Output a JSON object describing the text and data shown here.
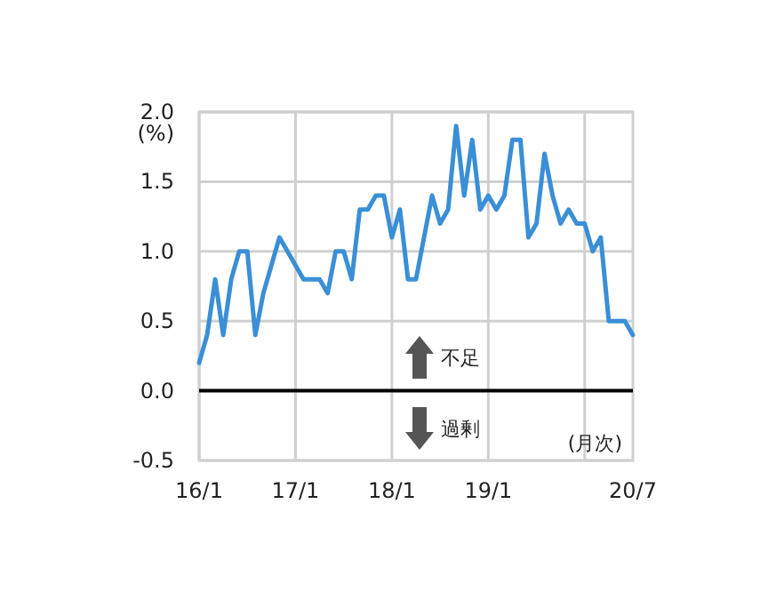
{
  "chart_data": {
    "type": "line",
    "ylabel": "(%)",
    "categories": [
      "16/1",
      null,
      null,
      null,
      null,
      null,
      null,
      null,
      null,
      null,
      null,
      null,
      "17/1",
      null,
      null,
      null,
      null,
      null,
      null,
      null,
      null,
      null,
      null,
      null,
      "18/1",
      null,
      null,
      null,
      null,
      null,
      null,
      null,
      null,
      null,
      null,
      null,
      "19/1",
      null,
      null,
      null,
      null,
      null,
      null,
      null,
      null,
      null,
      null,
      null,
      null,
      null,
      null,
      null,
      null,
      null,
      "20/7"
    ],
    "series": [
      {
        "color": "#3a8fd6",
        "values": [
          0.2,
          0.4,
          0.8,
          0.4,
          0.8,
          1.0,
          1.0,
          0.4,
          0.7,
          0.9,
          1.1,
          1.0,
          0.9,
          0.8,
          0.8,
          0.8,
          0.7,
          1.0,
          1.0,
          0.8,
          1.3,
          1.3,
          1.4,
          1.4,
          1.1,
          1.3,
          0.8,
          0.8,
          1.1,
          1.4,
          1.2,
          1.3,
          1.9,
          1.4,
          1.8,
          1.3,
          1.4,
          1.3,
          1.4,
          1.8,
          1.8,
          1.1,
          1.2,
          1.7,
          1.4,
          1.2,
          1.3,
          1.2,
          1.2,
          1.0,
          1.1,
          0.5,
          0.5,
          0.5,
          0.4
        ]
      }
    ],
    "ylim": [
      -0.5,
      2
    ],
    "yticks": [
      {
        "value": -0.5,
        "label": "-0.5"
      },
      {
        "value": 0,
        "label": "0.0"
      },
      {
        "value": 0.5,
        "label": "0.5"
      },
      {
        "value": 1,
        "label": "1.0"
      },
      {
        "value": 1.5,
        "label": "1.5"
      },
      {
        "value": 2,
        "label": "2.0"
      }
    ],
    "grid": true,
    "marker": "none",
    "line_style": "solid",
    "ref_lines": [
      {
        "axis": "y",
        "value": 0,
        "label": null,
        "color": "#000000"
      }
    ],
    "annotations": [
      "不足",
      "過剰",
      "(月次)"
    ]
  }
}
